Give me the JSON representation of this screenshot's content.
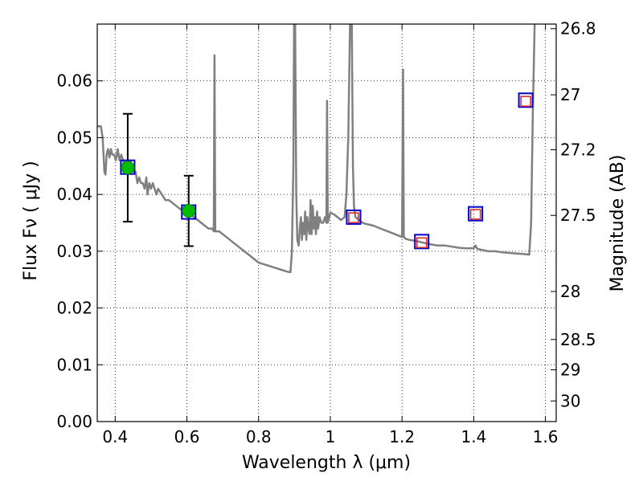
{
  "chart_data": {
    "type": "line",
    "xlabel": "Wavelength  λ (μm)",
    "ylabel": "Flux  Fν  ( μJy )",
    "ylabel_right": "Magnitude (AB)",
    "xlim": [
      0.35,
      1.63
    ],
    "ylim": [
      0.0,
      0.07
    ],
    "grid": true,
    "x_ticks": [
      {
        "value": 0.4,
        "label": "0.4"
      },
      {
        "value": 0.6,
        "label": "0.6"
      },
      {
        "value": 0.8,
        "label": "0.8"
      },
      {
        "value": 1.0,
        "label": "1"
      },
      {
        "value": 1.2,
        "label": "1.2"
      },
      {
        "value": 1.4,
        "label": "1.4"
      },
      {
        "value": 1.6,
        "label": "1.6"
      }
    ],
    "y_ticks": [
      {
        "value": 0.0,
        "label": "0.00"
      },
      {
        "value": 0.01,
        "label": "0.01"
      },
      {
        "value": 0.02,
        "label": "0.02"
      },
      {
        "value": 0.03,
        "label": "0.03"
      },
      {
        "value": 0.04,
        "label": "0.04"
      },
      {
        "value": 0.05,
        "label": "0.05"
      },
      {
        "value": 0.06,
        "label": "0.06"
      }
    ],
    "mag_ticks": [
      {
        "value": 26.8,
        "label": "26.8"
      },
      {
        "value": 27.0,
        "label": "27"
      },
      {
        "value": 27.2,
        "label": "27.2"
      },
      {
        "value": 27.5,
        "label": "27.5"
      },
      {
        "value": 28.0,
        "label": "28"
      },
      {
        "value": 28.5,
        "label": "28.5"
      },
      {
        "value": 29.0,
        "label": "29"
      },
      {
        "value": 30.0,
        "label": "30"
      }
    ],
    "series": [
      {
        "role": "model-spectrum",
        "color": "#808080",
        "points": [
          [
            0.35,
            0.052
          ],
          [
            0.36,
            0.052
          ],
          [
            0.365,
            0.05
          ],
          [
            0.37,
            0.044
          ],
          [
            0.373,
            0.0435
          ],
          [
            0.376,
            0.047
          ],
          [
            0.38,
            0.048
          ],
          [
            0.384,
            0.0465
          ],
          [
            0.388,
            0.048
          ],
          [
            0.392,
            0.047
          ],
          [
            0.397,
            0.047
          ],
          [
            0.402,
            0.046
          ],
          [
            0.407,
            0.048
          ],
          [
            0.412,
            0.046
          ],
          [
            0.417,
            0.047
          ],
          [
            0.422,
            0.046
          ],
          [
            0.427,
            0.044
          ],
          [
            0.432,
            0.045
          ],
          [
            0.437,
            0.045
          ],
          [
            0.442,
            0.046
          ],
          [
            0.447,
            0.045
          ],
          [
            0.452,
            0.044
          ],
          [
            0.457,
            0.044
          ],
          [
            0.462,
            0.042
          ],
          [
            0.467,
            0.043
          ],
          [
            0.472,
            0.042
          ],
          [
            0.477,
            0.042
          ],
          [
            0.482,
            0.041
          ],
          [
            0.487,
            0.043
          ],
          [
            0.49,
            0.04
          ],
          [
            0.495,
            0.042
          ],
          [
            0.5,
            0.041
          ],
          [
            0.505,
            0.042
          ],
          [
            0.51,
            0.041
          ],
          [
            0.515,
            0.04
          ],
          [
            0.52,
            0.041
          ],
          [
            0.53,
            0.04
          ],
          [
            0.54,
            0.039
          ],
          [
            0.55,
            0.039
          ],
          [
            0.56,
            0.0385
          ],
          [
            0.57,
            0.038
          ],
          [
            0.58,
            0.0375
          ],
          [
            0.59,
            0.037
          ],
          [
            0.6,
            0.037
          ],
          [
            0.61,
            0.0365
          ],
          [
            0.62,
            0.036
          ],
          [
            0.63,
            0.0355
          ],
          [
            0.64,
            0.035
          ],
          [
            0.65,
            0.0345
          ],
          [
            0.66,
            0.034
          ],
          [
            0.67,
            0.034
          ],
          [
            0.675,
            0.0335
          ],
          [
            0.677,
            0.0645
          ],
          [
            0.679,
            0.0335
          ],
          [
            0.69,
            0.0335
          ],
          [
            0.7,
            0.033
          ],
          [
            0.71,
            0.0325
          ],
          [
            0.72,
            0.032
          ],
          [
            0.73,
            0.0315
          ],
          [
            0.74,
            0.031
          ],
          [
            0.75,
            0.0305
          ],
          [
            0.76,
            0.03
          ],
          [
            0.77,
            0.0295
          ],
          [
            0.78,
            0.029
          ],
          [
            0.79,
            0.0285
          ],
          [
            0.8,
            0.028
          ],
          [
            0.81,
            0.0278
          ],
          [
            0.82,
            0.0276
          ],
          [
            0.83,
            0.0274
          ],
          [
            0.84,
            0.0272
          ],
          [
            0.85,
            0.027
          ],
          [
            0.86,
            0.0268
          ],
          [
            0.87,
            0.0266
          ],
          [
            0.88,
            0.0264
          ],
          [
            0.889,
            0.0263
          ],
          [
            0.893,
            0.03
          ],
          [
            0.897,
            0.045
          ],
          [
            0.899,
            0.07
          ],
          [
            0.902,
            0.07
          ],
          [
            0.905,
            0.04
          ],
          [
            0.908,
            0.032
          ],
          [
            0.912,
            0.031
          ],
          [
            0.915,
            0.034
          ],
          [
            0.918,
            0.036
          ],
          [
            0.921,
            0.032
          ],
          [
            0.924,
            0.035
          ],
          [
            0.927,
            0.033
          ],
          [
            0.93,
            0.037
          ],
          [
            0.933,
            0.032
          ],
          [
            0.936,
            0.036
          ],
          [
            0.939,
            0.034
          ],
          [
            0.942,
            0.033
          ],
          [
            0.945,
            0.039
          ],
          [
            0.948,
            0.033
          ],
          [
            0.951,
            0.038
          ],
          [
            0.954,
            0.034
          ],
          [
            0.957,
            0.036
          ],
          [
            0.96,
            0.033
          ],
          [
            0.963,
            0.037
          ],
          [
            0.966,
            0.034
          ],
          [
            0.97,
            0.036
          ],
          [
            0.975,
            0.035
          ],
          [
            0.98,
            0.035
          ],
          [
            0.985,
            0.036
          ],
          [
            0.989,
            0.035
          ],
          [
            0.991,
            0.0565
          ],
          [
            0.993,
            0.035
          ],
          [
            0.997,
            0.036
          ],
          [
            1.0,
            0.0368
          ],
          [
            1.01,
            0.0365
          ],
          [
            1.02,
            0.036
          ],
          [
            1.03,
            0.0355
          ],
          [
            1.04,
            0.036
          ],
          [
            1.045,
            0.04
          ],
          [
            1.05,
            0.05
          ],
          [
            1.055,
            0.07
          ],
          [
            1.06,
            0.07
          ],
          [
            1.063,
            0.045
          ],
          [
            1.066,
            0.038
          ],
          [
            1.07,
            0.036
          ],
          [
            1.08,
            0.0355
          ],
          [
            1.09,
            0.035
          ],
          [
            1.1,
            0.0348
          ],
          [
            1.12,
            0.0345
          ],
          [
            1.14,
            0.034
          ],
          [
            1.16,
            0.0335
          ],
          [
            1.18,
            0.033
          ],
          [
            1.2,
            0.0325
          ],
          [
            1.203,
            0.062
          ],
          [
            1.205,
            0.0325
          ],
          [
            1.21,
            0.0322
          ],
          [
            1.22,
            0.032
          ],
          [
            1.24,
            0.0318
          ],
          [
            1.26,
            0.0315
          ],
          [
            1.28,
            0.0312
          ],
          [
            1.3,
            0.031
          ],
          [
            1.32,
            0.031
          ],
          [
            1.34,
            0.0308
          ],
          [
            1.36,
            0.0306
          ],
          [
            1.38,
            0.0305
          ],
          [
            1.4,
            0.0305
          ],
          [
            1.405,
            0.031
          ],
          [
            1.41,
            0.0304
          ],
          [
            1.44,
            0.03
          ],
          [
            1.46,
            0.03
          ],
          [
            1.48,
            0.0298
          ],
          [
            1.5,
            0.0297
          ],
          [
            1.52,
            0.0296
          ],
          [
            1.54,
            0.0295
          ],
          [
            1.555,
            0.0294
          ],
          [
            1.56,
            0.035
          ],
          [
            1.565,
            0.055
          ],
          [
            1.57,
            0.07
          ]
        ]
      },
      {
        "role": "observed",
        "marker": "green-circle",
        "color": "#00bb00",
        "points": [
          {
            "x": 0.435,
            "y": 0.0447,
            "err_low": 0.0352,
            "err_high": 0.0542
          },
          {
            "x": 0.605,
            "y": 0.0371,
            "err_low": 0.0309,
            "err_high": 0.0433
          }
        ]
      },
      {
        "role": "model-bands",
        "marker": "blue-square",
        "color": "#0000cc",
        "points": [
          {
            "x": 0.435,
            "y": 0.0448
          },
          {
            "x": 0.605,
            "y": 0.0369
          },
          {
            "x": 1.065,
            "y": 0.036
          },
          {
            "x": 1.255,
            "y": 0.0317
          },
          {
            "x": 1.405,
            "y": 0.0366
          },
          {
            "x": 1.545,
            "y": 0.0566
          }
        ]
      },
      {
        "role": "upper-limits",
        "marker": "red-open-square",
        "color": "#dd2222",
        "points": [
          {
            "x": 1.065,
            "y": 0.0359
          },
          {
            "x": 1.255,
            "y": 0.0315
          },
          {
            "x": 1.405,
            "y": 0.0365
          },
          {
            "x": 1.545,
            "y": 0.0564
          }
        ]
      }
    ]
  }
}
